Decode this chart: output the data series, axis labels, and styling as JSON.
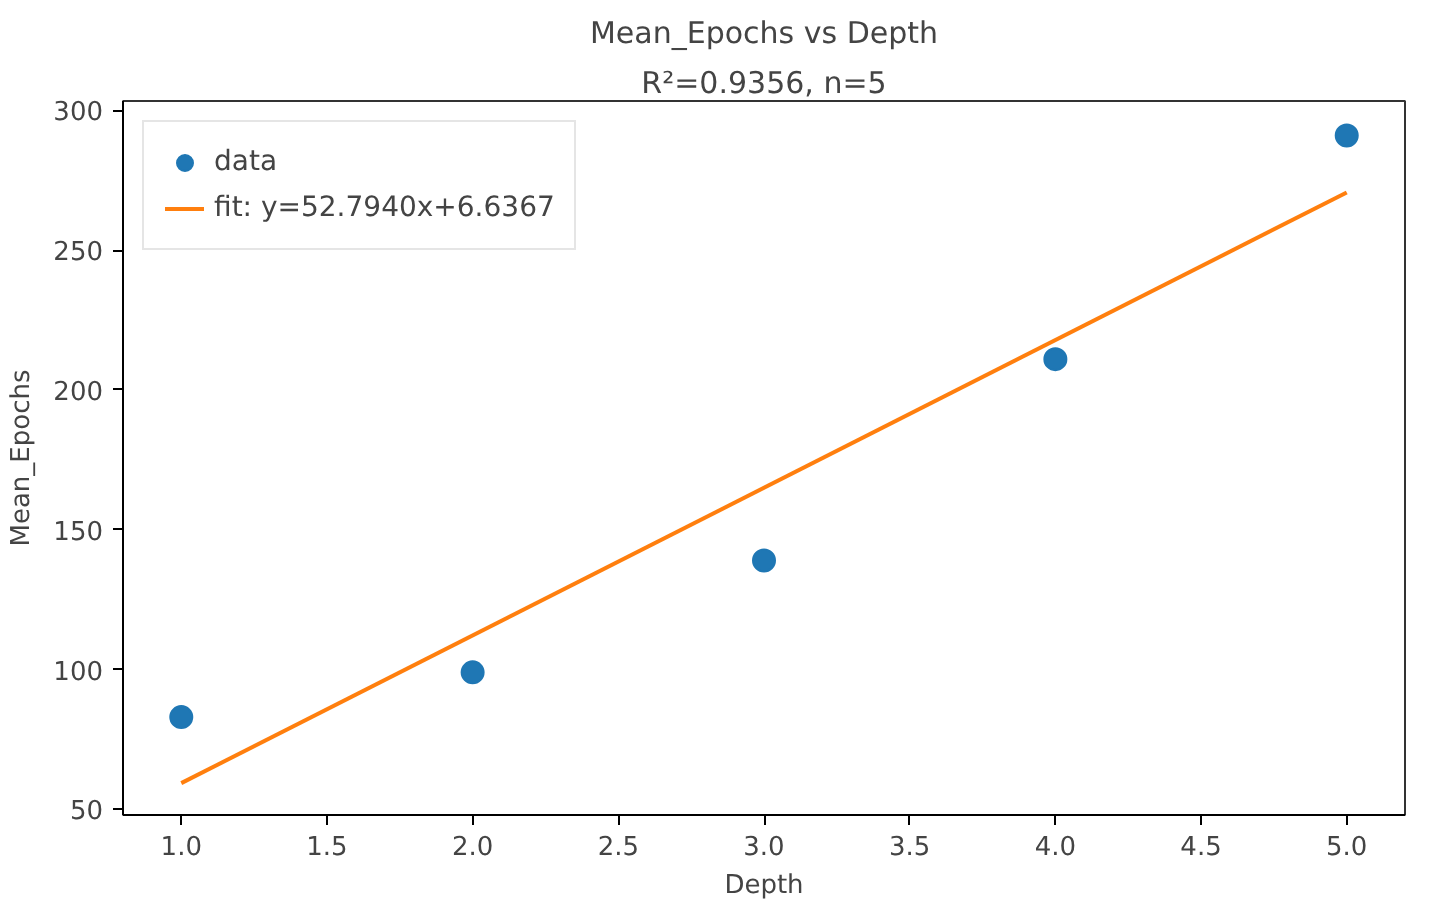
{
  "chart_data": {
    "type": "scatter",
    "title": "Mean_Epochs vs Depth",
    "subtitle": "R²=0.9356, n=5",
    "xlabel": "Depth",
    "ylabel": "Mean_Epochs",
    "series": [
      {
        "name": "data",
        "color": "#1f77b4",
        "marker": "circle",
        "x": [
          1,
          2,
          3,
          4,
          5
        ],
        "values": [
          83,
          99,
          139,
          211,
          291
        ]
      },
      {
        "name": "fit: y=52.7940x+6.6367",
        "type": "line",
        "color": "#ff7f0e",
        "x": [
          1,
          5
        ],
        "values": [
          59.4,
          270.6
        ]
      }
    ],
    "xlim": [
      0.8,
      5.2
    ],
    "ylim": [
      48,
      303.3
    ],
    "xticks": [
      {
        "value": 1,
        "label": "1.0"
      },
      {
        "value": 1.5,
        "label": "1.5"
      },
      {
        "value": 2,
        "label": "2.0"
      },
      {
        "value": 2.5,
        "label": "2.5"
      },
      {
        "value": 3,
        "label": "3.0"
      },
      {
        "value": 3.5,
        "label": "3.5"
      },
      {
        "value": 4,
        "label": "4.0"
      },
      {
        "value": 4.5,
        "label": "4.5"
      },
      {
        "value": 5,
        "label": "5.0"
      }
    ],
    "yticks": [
      50,
      100,
      150,
      200,
      250,
      300
    ],
    "grid": false,
    "legend": "top left"
  }
}
